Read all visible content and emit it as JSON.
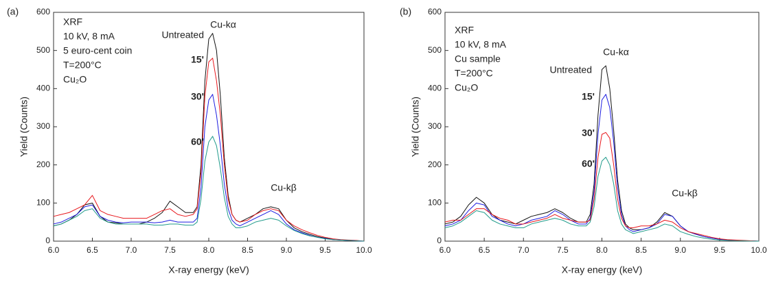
{
  "chart_data": [
    {
      "type": "line",
      "panel_label": "(a)",
      "xlabel": "X-ray energy (keV)",
      "ylabel": "Yield (Counts)",
      "notes": [
        "XRF",
        "10 kV, 8 mA",
        "5 euro-cent coin",
        "T=200°C",
        "Cu₂O"
      ],
      "peak_labels": [
        "Cu-kα",
        "Cu-kβ"
      ],
      "xlim": [
        6,
        10
      ],
      "ylim": [
        0,
        600
      ],
      "xticks": [
        {
          "value": 6,
          "label": "6.0"
        },
        {
          "value": 6.5,
          "label": "6.5"
        },
        {
          "value": 7,
          "label": "7.0"
        },
        {
          "value": 7.5,
          "label": "7.5"
        },
        {
          "value": 8,
          "label": "8.0"
        },
        {
          "value": 8.5,
          "label": "8.5"
        },
        {
          "value": 9,
          "label": "9.0"
        },
        {
          "value": 9.5,
          "label": "9.5"
        },
        {
          "value": 10,
          "label": "10.0"
        }
      ],
      "yticks": [
        0,
        100,
        200,
        300,
        400,
        500,
        600
      ],
      "x": [
        6.0,
        6.1,
        6.2,
        6.3,
        6.4,
        6.5,
        6.6,
        6.7,
        6.8,
        6.9,
        7.0,
        7.1,
        7.2,
        7.3,
        7.4,
        7.5,
        7.6,
        7.7,
        7.8,
        7.85,
        7.9,
        7.95,
        8.0,
        8.05,
        8.1,
        8.15,
        8.2,
        8.25,
        8.3,
        8.35,
        8.4,
        8.5,
        8.6,
        8.7,
        8.8,
        8.9,
        9.0,
        9.1,
        9.2,
        9.3,
        9.4,
        9.5,
        9.6,
        9.7,
        9.8,
        9.9,
        10.0
      ],
      "series": [
        {
          "name": "Untreated",
          "color": "#111111",
          "values": [
            40,
            45,
            55,
            70,
            95,
            100,
            65,
            50,
            48,
            45,
            45,
            45,
            50,
            60,
            75,
            105,
            90,
            75,
            75,
            90,
            200,
            420,
            530,
            545,
            500,
            380,
            220,
            120,
            70,
            55,
            50,
            60,
            70,
            85,
            90,
            85,
            55,
            35,
            25,
            18,
            12,
            8,
            5,
            3,
            2,
            1,
            0
          ]
        },
        {
          "name": "15'",
          "color": "#e8161b",
          "values": [
            65,
            70,
            75,
            85,
            95,
            120,
            80,
            70,
            65,
            60,
            60,
            60,
            60,
            70,
            80,
            85,
            70,
            65,
            70,
            85,
            180,
            380,
            470,
            480,
            420,
            330,
            200,
            110,
            70,
            55,
            50,
            55,
            70,
            80,
            85,
            80,
            55,
            40,
            30,
            22,
            15,
            10,
            6,
            4,
            3,
            2,
            0
          ]
        },
        {
          "name": "30'",
          "color": "#1c1ce0",
          "values": [
            45,
            50,
            60,
            70,
            90,
            95,
            65,
            55,
            50,
            48,
            50,
            50,
            50,
            48,
            50,
            55,
            50,
            50,
            50,
            60,
            140,
            300,
            370,
            385,
            330,
            250,
            150,
            85,
            55,
            45,
            40,
            50,
            60,
            70,
            80,
            70,
            45,
            30,
            22,
            15,
            10,
            7,
            4,
            3,
            2,
            1,
            0
          ]
        },
        {
          "name": "60'",
          "color": "#1f9a8a",
          "values": [
            40,
            45,
            55,
            65,
            80,
            85,
            60,
            50,
            45,
            45,
            45,
            45,
            45,
            42,
            42,
            45,
            45,
            42,
            42,
            50,
            110,
            210,
            260,
            275,
            250,
            190,
            115,
            65,
            45,
            35,
            35,
            40,
            50,
            55,
            60,
            55,
            40,
            28,
            20,
            14,
            10,
            6,
            4,
            3,
            2,
            1,
            0
          ]
        }
      ]
    },
    {
      "type": "line",
      "panel_label": "(b)",
      "xlabel": "X-ray energy (keV)",
      "ylabel": "Yield (Counts)",
      "notes": [
        "XRF",
        "10 kV, 8 mA",
        "Cu sample",
        "T=200°C",
        "Cu₂O"
      ],
      "peak_labels": [
        "Cu-kα",
        "Cu-kβ"
      ],
      "xlim": [
        6,
        10
      ],
      "ylim": [
        0,
        600
      ],
      "xticks": [
        {
          "value": 6,
          "label": "6.0"
        },
        {
          "value": 6.5,
          "label": "6.5"
        },
        {
          "value": 7,
          "label": "7.0"
        },
        {
          "value": 7.5,
          "label": "7.5"
        },
        {
          "value": 8,
          "label": "8.0"
        },
        {
          "value": 8.5,
          "label": "8.5"
        },
        {
          "value": 9,
          "label": "9.0"
        },
        {
          "value": 9.5,
          "label": "9.5"
        },
        {
          "value": 10,
          "label": "10.0"
        }
      ],
      "yticks": [
        0,
        100,
        200,
        300,
        400,
        500,
        600
      ],
      "x": [
        6.0,
        6.1,
        6.2,
        6.3,
        6.4,
        6.5,
        6.6,
        6.7,
        6.8,
        6.9,
        7.0,
        7.1,
        7.2,
        7.3,
        7.4,
        7.5,
        7.6,
        7.7,
        7.8,
        7.85,
        7.9,
        7.95,
        8.0,
        8.05,
        8.1,
        8.15,
        8.2,
        8.25,
        8.3,
        8.35,
        8.4,
        8.5,
        8.6,
        8.7,
        8.8,
        8.9,
        9.0,
        9.1,
        9.2,
        9.3,
        9.4,
        9.5,
        9.6,
        9.7,
        9.8,
        9.9,
        10.0
      ],
      "series": [
        {
          "name": "Untreated",
          "color": "#111111",
          "values": [
            45,
            50,
            65,
            95,
            115,
            100,
            70,
            55,
            50,
            45,
            55,
            65,
            70,
            75,
            85,
            75,
            60,
            50,
            50,
            70,
            150,
            330,
            450,
            460,
            400,
            290,
            160,
            80,
            45,
            35,
            30,
            30,
            35,
            50,
            75,
            65,
            40,
            25,
            18,
            12,
            8,
            5,
            3,
            2,
            1,
            1,
            0
          ]
        },
        {
          "name": "15'",
          "color": "#1c1ce0",
          "values": [
            40,
            45,
            55,
            80,
            100,
            95,
            65,
            55,
            45,
            40,
            45,
            55,
            60,
            65,
            80,
            70,
            55,
            45,
            45,
            60,
            130,
            280,
            370,
            385,
            350,
            260,
            140,
            70,
            40,
            30,
            25,
            30,
            35,
            45,
            70,
            65,
            40,
            25,
            18,
            12,
            8,
            5,
            3,
            2,
            1,
            1,
            0
          ]
        },
        {
          "name": "30'",
          "color": "#e8161b",
          "values": [
            50,
            55,
            55,
            70,
            85,
            85,
            70,
            60,
            55,
            45,
            45,
            50,
            55,
            60,
            70,
            60,
            55,
            50,
            50,
            55,
            110,
            220,
            280,
            285,
            270,
            200,
            110,
            60,
            40,
            35,
            35,
            40,
            40,
            45,
            55,
            50,
            35,
            25,
            20,
            15,
            10,
            6,
            4,
            3,
            2,
            1,
            0
          ]
        },
        {
          "name": "60'",
          "color": "#1f9a8a",
          "values": [
            35,
            40,
            50,
            65,
            80,
            75,
            55,
            45,
            40,
            35,
            35,
            45,
            50,
            55,
            60,
            55,
            45,
            40,
            40,
            50,
            90,
            170,
            210,
            220,
            200,
            150,
            80,
            45,
            30,
            25,
            20,
            25,
            30,
            35,
            45,
            40,
            25,
            18,
            12,
            8,
            5,
            3,
            2,
            1,
            1,
            0,
            0
          ]
        }
      ]
    }
  ]
}
